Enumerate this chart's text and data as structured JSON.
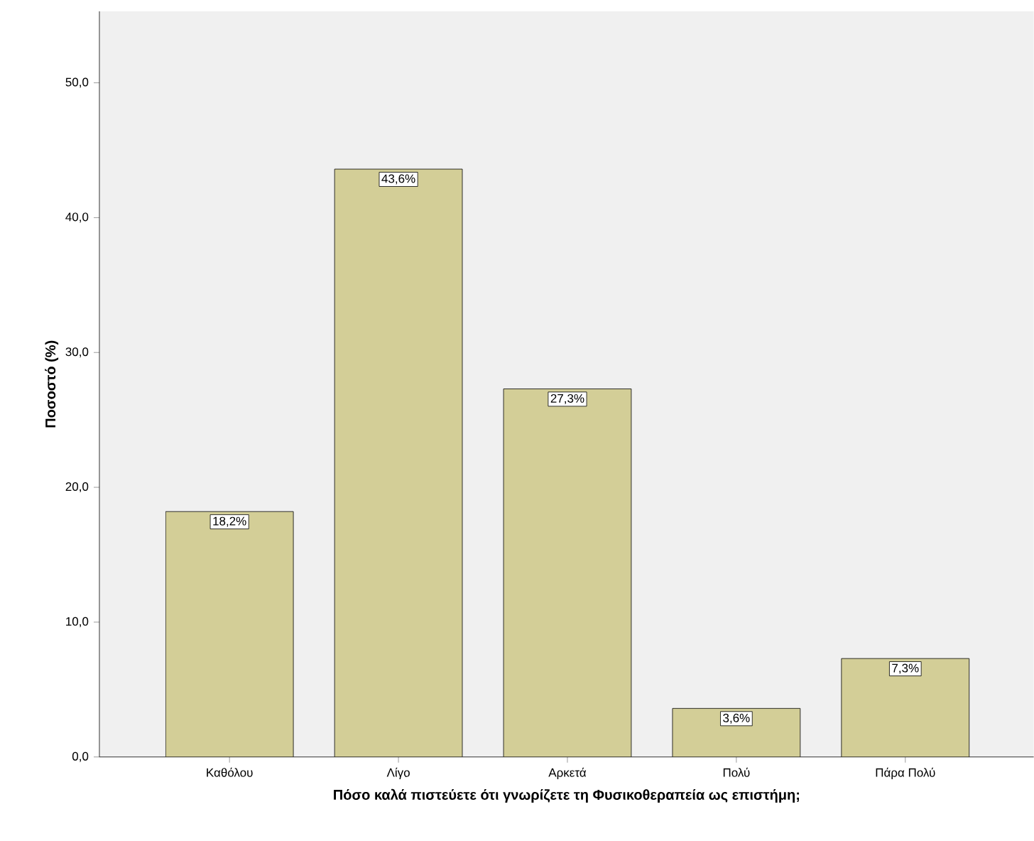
{
  "chart_data": {
    "type": "bar",
    "xlabel": "Πόσο καλά πιστεύετε ότι γνωρίζετε τη Φυσικοθεραπεία ως επιστήμη;",
    "ylabel": "Ποσοστό (%)",
    "categories": [
      "Καθόλου",
      "Λίγο",
      "Αρκετά",
      "Πολύ",
      "Πάρα Πολύ"
    ],
    "values": [
      18.2,
      43.6,
      27.3,
      3.6,
      7.3
    ],
    "value_labels": [
      "18,2%",
      "43,6%",
      "27,3%",
      "3,6%",
      "7,3%"
    ],
    "color": "#d3ce97",
    "ylim": [
      0,
      55.3
    ],
    "yticks": [
      {
        "value": 0,
        "label": "0,0"
      },
      {
        "value": 10,
        "label": "10,0"
      },
      {
        "value": 20,
        "label": "20,0"
      },
      {
        "value": 30,
        "label": "30,0"
      },
      {
        "value": 40,
        "label": "40,0"
      },
      {
        "value": 50,
        "label": "50,0"
      }
    ],
    "tick_labels": "xy"
  }
}
